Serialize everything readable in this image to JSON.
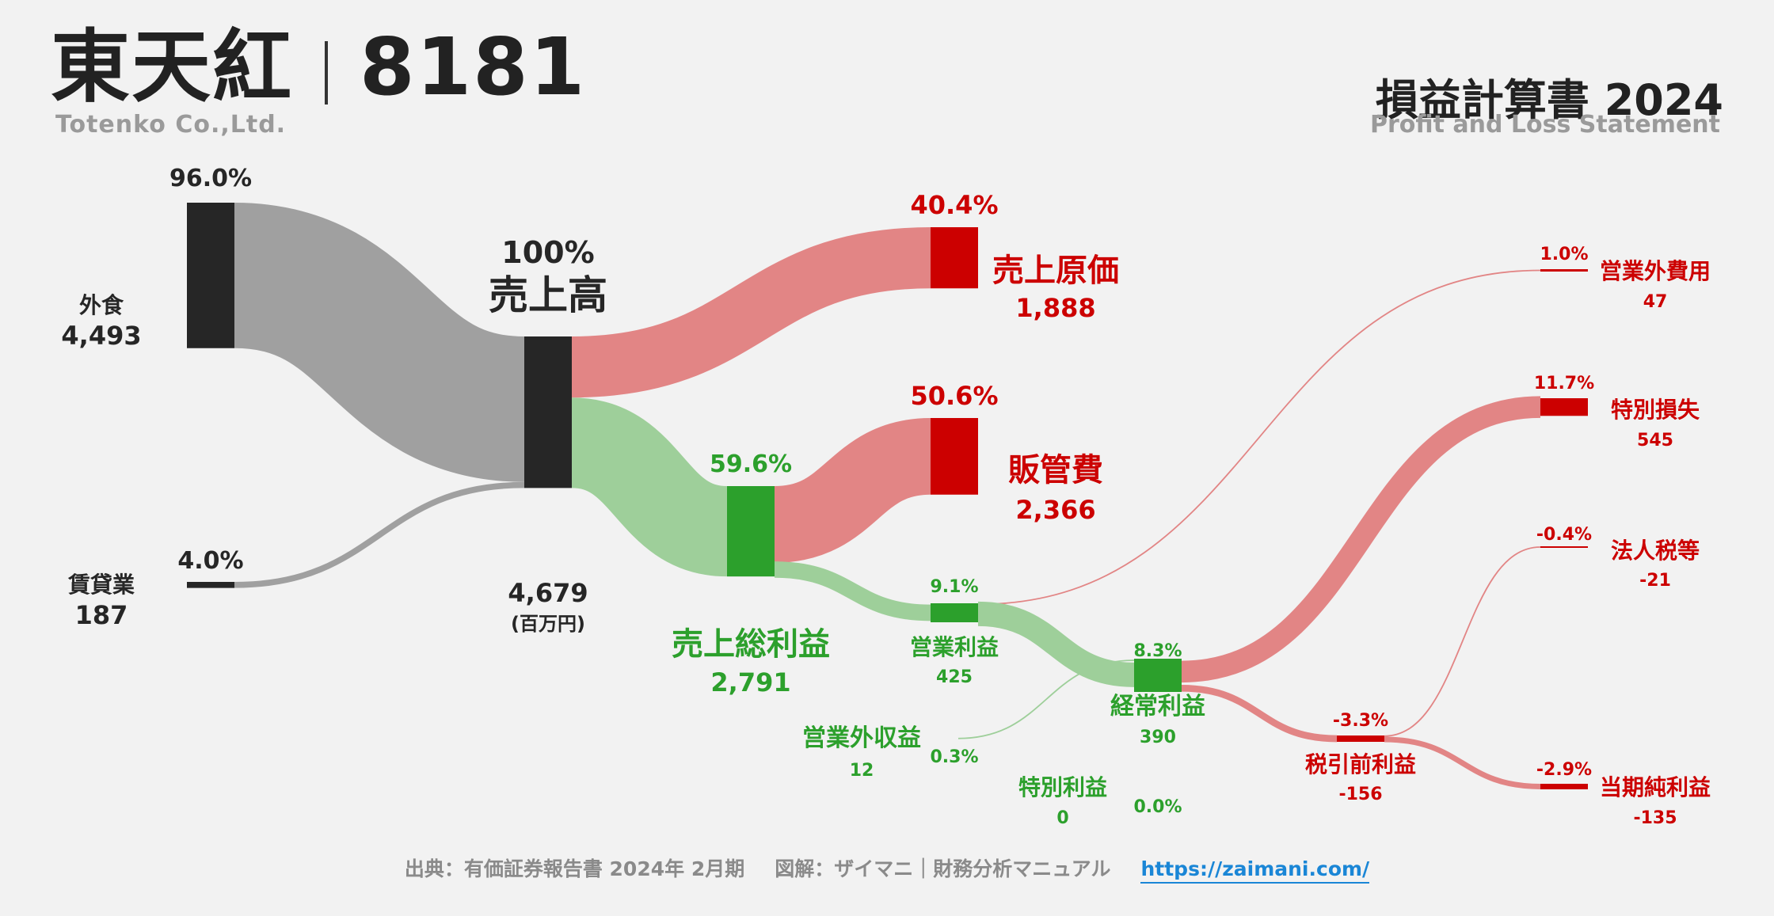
{
  "header": {
    "company_name": "東天紅",
    "ticker": "8181",
    "company_en": "Totenko Co.,Ltd.",
    "statement_title": "損益計算書 2024",
    "statement_subtitle": "Profit and Loss Statement"
  },
  "footer": {
    "source": "出典：有価証券報告書 2024年 2月期",
    "credit": "図解：ザイマニ｜財務分析マニュアル",
    "url": "https://zaimani.com/"
  },
  "colors": {
    "dark": "#262626",
    "gray_flow": "#a0a0a0",
    "green": "#2ca02c",
    "green_flow": "#9ecf9a",
    "red": "#cc0000",
    "red_flow": "#e28585"
  },
  "chart_data": {
    "type": "sankey",
    "unit_note": "(百万円)",
    "nodes": [
      {
        "id": "gaishoku",
        "name": "外食",
        "value": "4,493",
        "pct": "96.0%",
        "kind": "dark"
      },
      {
        "id": "chintai",
        "name": "賃貸業",
        "value": "187",
        "pct": "4.0%",
        "kind": "dark"
      },
      {
        "id": "revenue",
        "name": "売上高",
        "value": "4,679",
        "pct": "100%",
        "kind": "dark"
      },
      {
        "id": "cogs",
        "name": "売上原価",
        "value": "1,888",
        "pct": "40.4%",
        "kind": "red"
      },
      {
        "id": "gross",
        "name": "売上総利益",
        "value": "2,791",
        "pct": "59.6%",
        "kind": "green"
      },
      {
        "id": "sga",
        "name": "販管費",
        "value": "2,366",
        "pct": "50.6%",
        "kind": "red"
      },
      {
        "id": "op",
        "name": "営業利益",
        "value": "425",
        "pct": "9.1%",
        "kind": "green"
      },
      {
        "id": "nonop_inc",
        "name": "営業外収益",
        "value": "12",
        "pct": "0.3%",
        "kind": "green"
      },
      {
        "id": "nonop_exp",
        "name": "営業外費用",
        "value": "47",
        "pct": "1.0%",
        "kind": "red"
      },
      {
        "id": "ordinary",
        "name": "経常利益",
        "value": "390",
        "pct": "8.3%",
        "kind": "green"
      },
      {
        "id": "sp_gain",
        "name": "特別利益",
        "value": "0",
        "pct": "0.0%",
        "kind": "green"
      },
      {
        "id": "sp_loss",
        "name": "特別損失",
        "value": "545",
        "pct": "11.7%",
        "kind": "red"
      },
      {
        "id": "pretax",
        "name": "税引前利益",
        "value": "-156",
        "pct": "-3.3%",
        "kind": "red"
      },
      {
        "id": "tax",
        "name": "法人税等",
        "value": "-21",
        "pct": "-0.4%",
        "kind": "red"
      },
      {
        "id": "net",
        "name": "当期純利益",
        "value": "-135",
        "pct": "-2.9%",
        "kind": "red"
      }
    ],
    "links": [
      {
        "source": "gaishoku",
        "target": "revenue",
        "value": 4493
      },
      {
        "source": "chintai",
        "target": "revenue",
        "value": 187
      },
      {
        "source": "revenue",
        "target": "cogs",
        "value": 1888
      },
      {
        "source": "revenue",
        "target": "gross",
        "value": 2791
      },
      {
        "source": "gross",
        "target": "sga",
        "value": 2366
      },
      {
        "source": "gross",
        "target": "op",
        "value": 425
      },
      {
        "source": "op",
        "target": "nonop_exp",
        "value": 47
      },
      {
        "source": "op",
        "target": "ordinary",
        "value": 378
      },
      {
        "source": "nonop_inc",
        "target": "ordinary",
        "value": 12
      },
      {
        "source": "ordinary",
        "target": "sp_loss",
        "value": 545
      },
      {
        "source": "ordinary",
        "target": "pretax",
        "value": 156
      },
      {
        "source": "pretax",
        "target": "tax",
        "value": 21
      },
      {
        "source": "pretax",
        "target": "net",
        "value": 135
      }
    ]
  }
}
